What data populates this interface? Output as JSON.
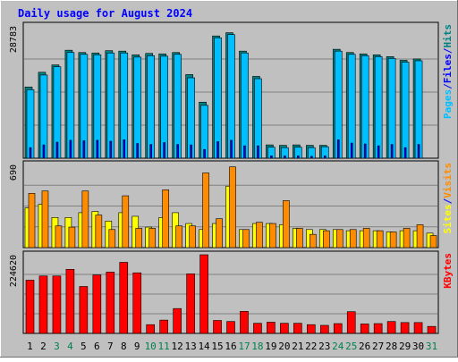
{
  "colors": {
    "background": "#c0c0c0",
    "title": "#0000ff",
    "hits": "#008080",
    "files": "#00bfff",
    "pages": "#0000ff",
    "visits": "#ff8c00",
    "sites": "#ffff00",
    "kbytes": "#ff0000",
    "weekend_label": "#00804f"
  },
  "chart_data": {
    "type": "bar",
    "title": "Daily usage for August 2024",
    "categories": [
      "1",
      "2",
      "3",
      "4",
      "5",
      "6",
      "7",
      "8",
      "9",
      "10",
      "11",
      "12",
      "13",
      "14",
      "15",
      "16",
      "17",
      "18",
      "19",
      "20",
      "21",
      "22",
      "23",
      "24",
      "25",
      "26",
      "27",
      "28",
      "29",
      "30",
      "31"
    ],
    "weekend_days": [
      "3",
      "4",
      "10",
      "11",
      "17",
      "18",
      "24",
      "25",
      "31"
    ],
    "panels": [
      {
        "name": "hits-files-pages",
        "ymax_label": "28783",
        "ylim": [
          0,
          28783
        ],
        "legend": [
          {
            "label": "Pages",
            "color_key": "files"
          },
          {
            "label": "/",
            "color_key": "title"
          },
          {
            "label": "Files",
            "color_key": "pages"
          },
          {
            "label": "/",
            "color_key": "title"
          },
          {
            "label": "Hits",
            "color_key": "hits"
          }
        ],
        "series": [
          {
            "color_key": "hits",
            "values": [
              15500,
              18700,
              20300,
              23500,
              23000,
              22900,
              23400,
              23300,
              22500,
              22800,
              22700,
              23000,
              18200,
              12200,
              26600,
              27300,
              23300,
              17800,
              2900,
              2800,
              2900,
              2800,
              2800,
              23700,
              23000,
              22700,
              22500,
              22100,
              21300,
              21600,
              0
            ]
          },
          {
            "color_key": "files",
            "values": [
              14900,
              18100,
              19900,
              23000,
              22600,
              22500,
              22900,
              22900,
              22000,
              22300,
              22200,
              22600,
              17500,
              11500,
              26200,
              26900,
              22900,
              17300,
              2400,
              2300,
              2400,
              2300,
              2500,
              23300,
              22600,
              22300,
              22100,
              21700,
              20900,
              21200,
              0
            ]
          },
          {
            "color_key": "pages",
            "values": [
              2300,
              2900,
              3500,
              3900,
              3800,
              3900,
              3700,
              4000,
              3200,
              3000,
              3400,
              3000,
              2900,
              1900,
              3600,
              3900,
              2700,
              2700,
              500,
              500,
              500,
              400,
              500,
              4000,
              3300,
              3100,
              2700,
              3000,
              2300,
              3000,
              0
            ]
          }
        ]
      },
      {
        "name": "visits-sites",
        "ymax_label": "690",
        "ylim": [
          0,
          690
        ],
        "legend": [
          {
            "label": "Sites",
            "color_key": "sites"
          },
          {
            "label": "/",
            "color_key": "title"
          },
          {
            "label": "Visits",
            "color_key": "visits"
          }
        ],
        "series": [
          {
            "color_key": "sites",
            "values": [
              330,
              360,
              250,
              250,
              290,
              300,
              220,
              290,
              260,
              170,
              250,
              290,
              200,
              150,
              200,
              510,
              150,
              200,
              200,
              190,
              160,
              150,
              150,
              150,
              140,
              140,
              140,
              130,
              140,
              140,
              120
            ]
          },
          {
            "color_key": "visits",
            "values": [
              450,
              470,
              180,
              170,
              470,
              270,
              150,
              430,
              160,
              160,
              480,
              180,
              180,
              620,
              240,
              670,
              150,
              210,
              200,
              390,
              160,
              110,
              140,
              150,
              150,
              160,
              140,
              130,
              160,
              190,
              100
            ]
          }
        ]
      },
      {
        "name": "kbytes",
        "ymax_label": "224620",
        "ylim": [
          0,
          224620
        ],
        "legend": [
          {
            "label": "KBytes",
            "color_key": "kbytes"
          }
        ],
        "series": [
          {
            "color_key": "kbytes",
            "values": [
              152000,
              164000,
              164000,
              183000,
              134000,
              167000,
              175000,
              203000,
              173000,
              25000,
              38000,
              71000,
              170000,
              224620,
              37000,
              34000,
              63000,
              29000,
              32000,
              29000,
              29000,
              25000,
              23000,
              28000,
              62000,
              27000,
              28000,
              34000,
              31000,
              31000,
              20000
            ]
          }
        ]
      }
    ]
  }
}
